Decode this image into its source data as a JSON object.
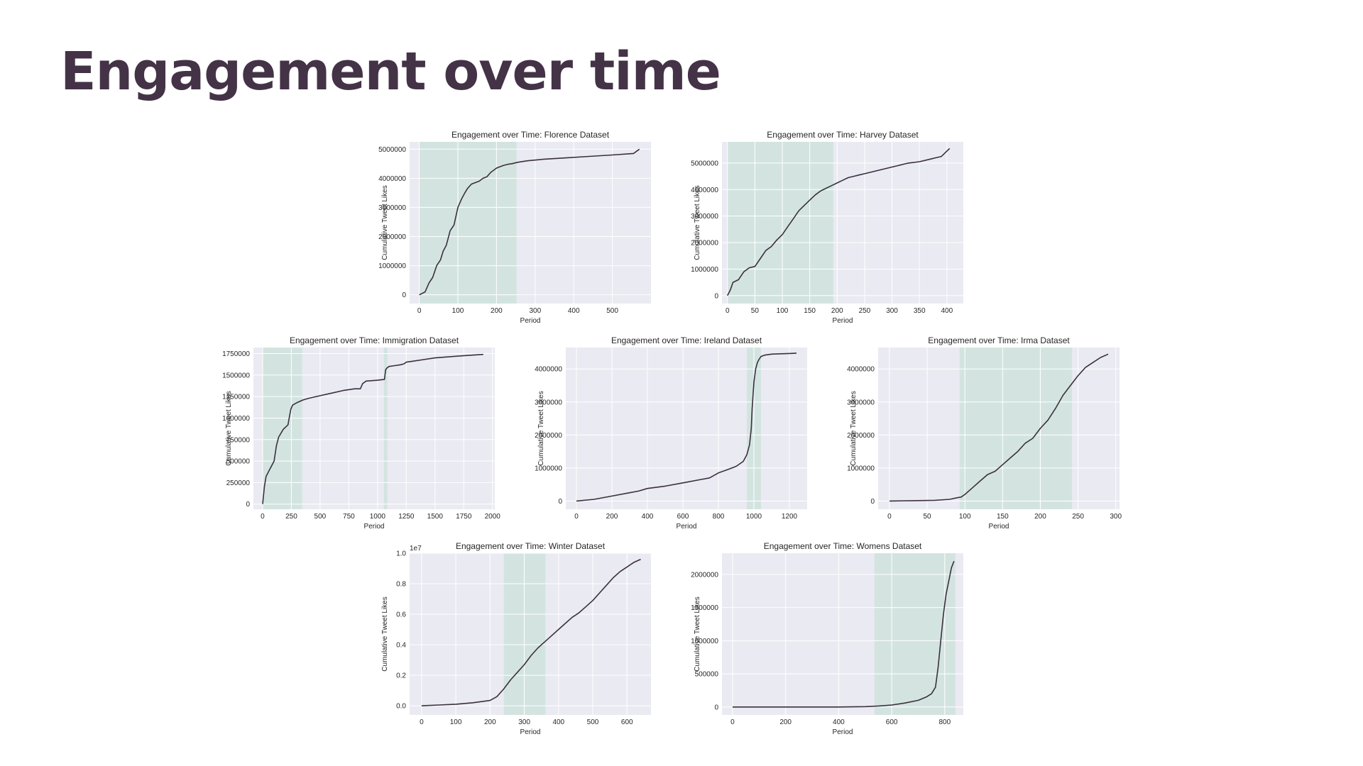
{
  "slide": {
    "title": "Engagement over time"
  },
  "theme": {
    "plot_bg": "#eaeaf2",
    "grid": "#ffffff",
    "line": "#3b2f3e",
    "shade": "#cfe3dd",
    "text": "#262626",
    "title_text": "#443247"
  },
  "chart_data": [
    {
      "id": "florence",
      "type": "line",
      "title": "Engagement over Time: Florence Dataset",
      "xlabel": "Period",
      "ylabel": "Cumulative Tweet Likes",
      "xlim": [
        -25,
        600
      ],
      "ylim": [
        -300000,
        5250000
      ],
      "xticks": [
        0,
        100,
        200,
        300,
        400,
        500
      ],
      "yticks": [
        0,
        1000000,
        2000000,
        3000000,
        4000000,
        5000000
      ],
      "ytick_labels": [
        "0",
        "1000000",
        "2000000",
        "3000000",
        "4000000",
        "5000000"
      ],
      "shaded": [
        [
          0,
          252
        ]
      ],
      "series": [
        {
          "name": "Florence",
          "x": [
            0,
            15,
            25,
            35,
            45,
            55,
            62,
            70,
            80,
            90,
            100,
            110,
            118,
            125,
            135,
            145,
            155,
            165,
            175,
            185,
            200,
            210,
            220,
            230,
            240,
            255,
            280,
            320,
            380,
            440,
            500,
            555,
            570
          ],
          "y": [
            0,
            100000,
            400000,
            600000,
            1000000,
            1200000,
            1500000,
            1700000,
            2200000,
            2400000,
            3000000,
            3300000,
            3500000,
            3650000,
            3800000,
            3850000,
            3900000,
            4000000,
            4050000,
            4200000,
            4350000,
            4400000,
            4450000,
            4480000,
            4500000,
            4550000,
            4600000,
            4650000,
            4700000,
            4750000,
            4800000,
            4850000,
            5000000
          ]
        }
      ]
    },
    {
      "id": "harvey",
      "type": "line",
      "title": "Engagement over Time: Harvey Dataset",
      "xlabel": "Period",
      "ylabel": "Cumulative Tweet Likes",
      "xlim": [
        -10,
        430
      ],
      "ylim": [
        -300000,
        5800000
      ],
      "xticks": [
        0,
        50,
        100,
        150,
        200,
        250,
        300,
        350,
        400
      ],
      "yticks": [
        0,
        1000000,
        2000000,
        3000000,
        4000000,
        5000000
      ],
      "ytick_labels": [
        "0",
        "1000000",
        "2000000",
        "3000000",
        "4000000",
        "5000000"
      ],
      "shaded": [
        [
          0,
          193
        ]
      ],
      "series": [
        {
          "name": "Harvey",
          "x": [
            0,
            5,
            10,
            20,
            30,
            40,
            50,
            60,
            70,
            80,
            90,
            100,
            110,
            120,
            130,
            140,
            150,
            160,
            170,
            180,
            190,
            200,
            210,
            220,
            230,
            240,
            250,
            270,
            290,
            310,
            330,
            350,
            370,
            380,
            390,
            400,
            405
          ],
          "y": [
            0,
            200000,
            500000,
            600000,
            900000,
            1050000,
            1100000,
            1400000,
            1700000,
            1850000,
            2100000,
            2300000,
            2600000,
            2900000,
            3200000,
            3400000,
            3600000,
            3800000,
            3950000,
            4050000,
            4150000,
            4250000,
            4350000,
            4450000,
            4500000,
            4550000,
            4600000,
            4700000,
            4800000,
            4900000,
            5000000,
            5050000,
            5150000,
            5200000,
            5250000,
            5450000,
            5550000
          ]
        }
      ]
    },
    {
      "id": "immigration",
      "type": "line",
      "title": "Engagement over Time: Immigration Dataset",
      "xlabel": "Period",
      "ylabel": "Cumulative Tweet Likes",
      "xlim": [
        -80,
        2020
      ],
      "ylim": [
        -60000,
        1820000
      ],
      "xticks": [
        0,
        250,
        500,
        750,
        1000,
        1250,
        1500,
        1750,
        2000
      ],
      "yticks": [
        0,
        250000,
        500000,
        750000,
        1000000,
        1250000,
        1500000,
        1750000
      ],
      "ytick_labels": [
        "0",
        "250000",
        "500000",
        "750000",
        "1000000",
        "1250000",
        "1500000",
        "1750000"
      ],
      "shaded": [
        [
          0,
          345
        ],
        [
          1055,
          1085
        ]
      ],
      "series": [
        {
          "name": "Immigration",
          "x": [
            0,
            15,
            30,
            60,
            100,
            120,
            140,
            180,
            220,
            245,
            260,
            300,
            350,
            400,
            500,
            600,
            700,
            800,
            850,
            870,
            900,
            1000,
            1060,
            1070,
            1080,
            1100,
            1150,
            1200,
            1230,
            1250,
            1300,
            1400,
            1500,
            1600,
            1700,
            1800,
            1920
          ],
          "y": [
            0,
            200000,
            320000,
            400000,
            500000,
            680000,
            780000,
            870000,
            920000,
            1100000,
            1150000,
            1180000,
            1210000,
            1230000,
            1260000,
            1290000,
            1320000,
            1340000,
            1340000,
            1400000,
            1430000,
            1440000,
            1450000,
            1560000,
            1580000,
            1600000,
            1610000,
            1620000,
            1630000,
            1650000,
            1660000,
            1680000,
            1700000,
            1710000,
            1720000,
            1730000,
            1740000
          ]
        }
      ]
    },
    {
      "id": "ireland",
      "type": "line",
      "title": "Engagement over Time: Ireland Dataset",
      "xlabel": "Period",
      "ylabel": "Cumulative Tweet Likes",
      "xlim": [
        -60,
        1300
      ],
      "ylim": [
        -250000,
        4650000
      ],
      "xticks": [
        0,
        200,
        400,
        600,
        800,
        1000,
        1200
      ],
      "yticks": [
        0,
        1000000,
        2000000,
        3000000,
        4000000
      ],
      "ytick_labels": [
        "0",
        "1000000",
        "2000000",
        "3000000",
        "4000000"
      ],
      "shaded": [
        [
          960,
          1040
        ]
      ],
      "series": [
        {
          "name": "Ireland",
          "x": [
            0,
            100,
            200,
            300,
            350,
            400,
            500,
            600,
            700,
            750,
            800,
            850,
            900,
            940,
            960,
            975,
            985,
            990,
            1000,
            1010,
            1020,
            1030,
            1040,
            1060,
            1100,
            1150,
            1200,
            1240
          ],
          "y": [
            0,
            50000,
            150000,
            250000,
            300000,
            380000,
            450000,
            550000,
            650000,
            700000,
            850000,
            950000,
            1050000,
            1200000,
            1400000,
            1700000,
            2200000,
            2800000,
            3600000,
            4000000,
            4200000,
            4300000,
            4380000,
            4420000,
            4450000,
            4460000,
            4470000,
            4480000
          ]
        }
      ]
    },
    {
      "id": "irma",
      "type": "line",
      "title": "Engagement over Time: Irma Dataset",
      "xlabel": "Period",
      "ylabel": "Cumulative Tweet Likes",
      "xlim": [
        -15,
        305
      ],
      "ylim": [
        -250000,
        4650000
      ],
      "xticks": [
        0,
        50,
        100,
        150,
        200,
        250,
        300
      ],
      "yticks": [
        0,
        1000000,
        2000000,
        3000000,
        4000000
      ],
      "ytick_labels": [
        "0",
        "1000000",
        "2000000",
        "3000000",
        "4000000"
      ],
      "shaded": [
        [
          93,
          242
        ]
      ],
      "series": [
        {
          "name": "Irma",
          "x": [
            0,
            30,
            60,
            80,
            90,
            95,
            100,
            110,
            120,
            130,
            140,
            150,
            160,
            170,
            180,
            190,
            200,
            210,
            220,
            230,
            240,
            250,
            260,
            270,
            280,
            290
          ],
          "y": [
            0,
            10000,
            20000,
            50000,
            100000,
            120000,
            200000,
            400000,
            600000,
            800000,
            900000,
            1100000,
            1300000,
            1500000,
            1750000,
            1900000,
            2200000,
            2450000,
            2800000,
            3200000,
            3500000,
            3800000,
            4050000,
            4200000,
            4350000,
            4450000
          ]
        }
      ]
    },
    {
      "id": "winter",
      "type": "line",
      "title": "Engagement over Time: Winter Dataset",
      "xlabel": "Period",
      "ylabel": "Cumulative Tweet Likes",
      "xlim": [
        -35,
        670
      ],
      "ylim": [
        -0.06,
        1.0
      ],
      "xticks": [
        0,
        100,
        200,
        300,
        400,
        500,
        600
      ],
      "yticks": [
        0.0,
        0.2,
        0.4,
        0.6,
        0.8,
        1.0
      ],
      "ytick_labels": [
        "0.0",
        "0.2",
        "0.4",
        "0.6",
        "0.8",
        "1.0"
      ],
      "y_scale_label": "1e7",
      "shaded": [
        [
          240,
          362
        ]
      ],
      "series": [
        {
          "name": "Winter",
          "x": [
            0,
            50,
            100,
            150,
            200,
            220,
            240,
            260,
            280,
            300,
            320,
            340,
            360,
            380,
            400,
            420,
            440,
            460,
            480,
            500,
            520,
            540,
            560,
            580,
            600,
            620,
            640
          ],
          "y": [
            0.0,
            0.005,
            0.01,
            0.02,
            0.035,
            0.06,
            0.11,
            0.17,
            0.22,
            0.27,
            0.33,
            0.38,
            0.42,
            0.46,
            0.5,
            0.54,
            0.58,
            0.61,
            0.65,
            0.69,
            0.74,
            0.79,
            0.84,
            0.88,
            0.91,
            0.94,
            0.96
          ]
        }
      ]
    },
    {
      "id": "womens",
      "type": "line",
      "title": "Engagement over Time: Womens Dataset",
      "xlabel": "Period",
      "ylabel": "Cumulative Tweet Likes",
      "xlim": [
        -40,
        870
      ],
      "ylim": [
        -120000,
        2320000
      ],
      "xticks": [
        0,
        200,
        400,
        600,
        800
      ],
      "yticks": [
        0,
        500000,
        1000000,
        1500000,
        2000000
      ],
      "ytick_labels": [
        "0",
        "500000",
        "1000000",
        "1500000",
        "2000000"
      ],
      "shaded": [
        [
          535,
          840
        ]
      ],
      "series": [
        {
          "name": "Womens",
          "x": [
            0,
            200,
            400,
            500,
            550,
            600,
            650,
            700,
            730,
            750,
            765,
            775,
            785,
            795,
            805,
            815,
            825,
            835
          ],
          "y": [
            0,
            0,
            0,
            5000,
            15000,
            30000,
            60000,
            100000,
            150000,
            200000,
            300000,
            600000,
            1000000,
            1400000,
            1700000,
            1900000,
            2100000,
            2200000
          ]
        }
      ]
    }
  ]
}
